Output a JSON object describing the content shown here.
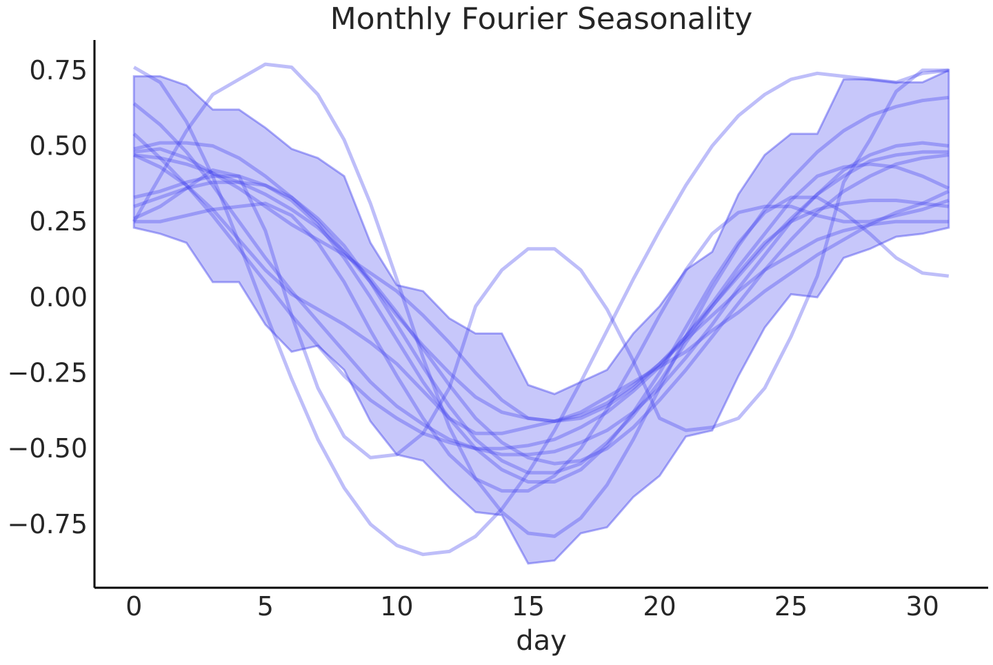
{
  "chart_data": {
    "type": "line",
    "title": "Monthly Fourier Seasonality",
    "xlabel": "day",
    "ylabel": "",
    "xlim": [
      -1.5,
      32.5
    ],
    "ylim": [
      -0.96,
      0.85
    ],
    "xticks": [
      0,
      5,
      10,
      15,
      20,
      25,
      30
    ],
    "xtick_labels": [
      "0",
      "5",
      "10",
      "15",
      "20",
      "25",
      "30"
    ],
    "yticks": [
      0.75,
      0.5,
      0.25,
      0.0,
      -0.25,
      -0.5,
      -0.75
    ],
    "ytick_labels": [
      "0.75",
      "0.50",
      "0.25",
      "0.00",
      "−0.25",
      "−0.50",
      "−0.75"
    ],
    "grid": false,
    "colors": {
      "line": "#4444ee",
      "band": "#4444ee",
      "axis": "#000000",
      "text": "#262626"
    },
    "x": [
      0,
      1,
      2,
      3,
      4,
      5,
      6,
      7,
      8,
      9,
      10,
      11,
      12,
      13,
      14,
      15,
      16,
      17,
      18,
      19,
      20,
      21,
      22,
      23,
      24,
      25,
      26,
      27,
      28,
      29,
      30,
      31
    ],
    "band": {
      "upper": [
        0.73,
        0.73,
        0.7,
        0.62,
        0.62,
        0.56,
        0.49,
        0.46,
        0.4,
        0.18,
        0.04,
        0.02,
        -0.07,
        -0.12,
        -0.12,
        -0.29,
        -0.32,
        -0.28,
        -0.24,
        -0.12,
        -0.03,
        0.09,
        0.15,
        0.34,
        0.47,
        0.54,
        0.54,
        0.72,
        0.72,
        0.71,
        0.71,
        0.75
      ],
      "lower": [
        0.23,
        0.21,
        0.18,
        0.05,
        0.05,
        -0.09,
        -0.18,
        -0.16,
        -0.24,
        -0.41,
        -0.52,
        -0.54,
        -0.63,
        -0.71,
        -0.72,
        -0.88,
        -0.87,
        -0.78,
        -0.76,
        -0.66,
        -0.59,
        -0.46,
        -0.44,
        -0.26,
        -0.1,
        0.01,
        0.0,
        0.13,
        0.16,
        0.2,
        0.21,
        0.23
      ]
    },
    "series": [
      {
        "values": [
          0.76,
          0.71,
          0.58,
          0.4,
          0.18,
          -0.05,
          -0.27,
          -0.47,
          -0.63,
          -0.75,
          -0.82,
          -0.85,
          -0.84,
          -0.79,
          -0.7,
          -0.58,
          -0.44,
          -0.28,
          -0.11,
          0.06,
          0.22,
          0.37,
          0.5,
          0.6,
          0.67,
          0.72,
          0.74,
          0.73,
          0.72,
          0.71,
          0.74,
          0.75
        ]
      },
      {
        "values": [
          0.25,
          0.4,
          0.55,
          0.67,
          0.72,
          0.77,
          0.76,
          0.67,
          0.52,
          0.31,
          0.06,
          -0.2,
          -0.43,
          -0.6,
          -0.71,
          -0.78,
          -0.79,
          -0.73,
          -0.62,
          -0.47,
          -0.3,
          -0.13,
          0.03,
          0.17,
          0.29,
          0.39,
          0.48,
          0.55,
          0.6,
          0.63,
          0.65,
          0.66
        ]
      },
      {
        "values": [
          0.26,
          0.3,
          0.36,
          0.42,
          0.4,
          0.22,
          -0.06,
          -0.3,
          -0.46,
          -0.53,
          -0.52,
          -0.45,
          -0.3,
          -0.03,
          0.09,
          0.16,
          0.16,
          0.09,
          -0.04,
          -0.21,
          -0.4,
          -0.44,
          -0.43,
          -0.4,
          -0.3,
          -0.13,
          0.07,
          0.38,
          0.52,
          0.68,
          0.75,
          0.75
        ]
      },
      {
        "values": [
          0.64,
          0.57,
          0.48,
          0.37,
          0.25,
          0.13,
          0.02,
          -0.08,
          -0.18,
          -0.28,
          -0.36,
          -0.42,
          -0.47,
          -0.5,
          -0.52,
          -0.52,
          -0.51,
          -0.48,
          -0.44,
          -0.38,
          -0.3,
          -0.2,
          -0.09,
          0.03,
          0.14,
          0.25,
          0.34,
          0.42,
          0.47,
          0.5,
          0.51,
          0.5
        ]
      },
      {
        "values": [
          0.54,
          0.46,
          0.37,
          0.27,
          0.16,
          0.05,
          -0.06,
          -0.16,
          -0.26,
          -0.34,
          -0.4,
          -0.45,
          -0.48,
          -0.5,
          -0.5,
          -0.49,
          -0.47,
          -0.43,
          -0.38,
          -0.31,
          -0.23,
          -0.13,
          -0.03,
          0.07,
          0.17,
          0.26,
          0.34,
          0.4,
          0.45,
          0.47,
          0.48,
          0.48
        ]
      },
      {
        "values": [
          0.33,
          0.35,
          0.38,
          0.4,
          0.4,
          0.37,
          0.32,
          0.24,
          0.13,
          0.0,
          -0.14,
          -0.28,
          -0.4,
          -0.5,
          -0.57,
          -0.61,
          -0.61,
          -0.57,
          -0.49,
          -0.38,
          -0.25,
          -0.1,
          0.05,
          0.18,
          0.28,
          0.33,
          0.33,
          0.28,
          0.21,
          0.13,
          0.08,
          0.07
        ]
      },
      {
        "values": [
          0.48,
          0.49,
          0.46,
          0.41,
          0.36,
          0.3,
          0.24,
          0.19,
          0.14,
          0.08,
          0.02,
          -0.06,
          -0.15,
          -0.25,
          -0.34,
          -0.4,
          -0.41,
          -0.4,
          -0.36,
          -0.3,
          -0.22,
          -0.13,
          -0.02,
          0.1,
          0.21,
          0.32,
          0.4,
          0.43,
          0.44,
          0.43,
          0.4,
          0.36
        ]
      },
      {
        "values": [
          0.3,
          0.33,
          0.36,
          0.38,
          0.38,
          0.37,
          0.33,
          0.26,
          0.17,
          0.05,
          -0.09,
          -0.23,
          -0.36,
          -0.47,
          -0.54,
          -0.58,
          -0.58,
          -0.55,
          -0.48,
          -0.39,
          -0.28,
          -0.15,
          -0.03,
          0.08,
          0.18,
          0.25,
          0.29,
          0.31,
          0.32,
          0.32,
          0.31,
          0.3
        ]
      },
      {
        "values": [
          0.47,
          0.46,
          0.44,
          0.41,
          0.38,
          0.34,
          0.29,
          0.23,
          0.15,
          0.06,
          -0.05,
          -0.17,
          -0.29,
          -0.4,
          -0.48,
          -0.53,
          -0.55,
          -0.54,
          -0.5,
          -0.43,
          -0.34,
          -0.24,
          -0.13,
          -0.02,
          0.09,
          0.19,
          0.28,
          0.35,
          0.4,
          0.44,
          0.46,
          0.47
        ]
      },
      {
        "values": [
          0.49,
          0.51,
          0.51,
          0.5,
          0.46,
          0.4,
          0.33,
          0.25,
          0.15,
          0.05,
          -0.06,
          -0.16,
          -0.25,
          -0.33,
          -0.38,
          -0.4,
          -0.41,
          -0.39,
          -0.35,
          -0.29,
          -0.22,
          -0.14,
          -0.06,
          0.02,
          0.09,
          0.14,
          0.19,
          0.22,
          0.24,
          0.25,
          0.25,
          0.25
        ]
      },
      {
        "values": [
          0.25,
          0.25,
          0.27,
          0.29,
          0.3,
          0.31,
          0.27,
          0.18,
          0.05,
          -0.11,
          -0.26,
          -0.4,
          -0.52,
          -0.6,
          -0.64,
          -0.64,
          -0.59,
          -0.5,
          -0.37,
          -0.22,
          -0.06,
          0.09,
          0.21,
          0.28,
          0.3,
          0.3,
          0.27,
          0.25,
          0.25,
          0.27,
          0.29,
          0.32
        ]
      },
      {
        "values": [
          0.47,
          0.43,
          0.37,
          0.29,
          0.19,
          0.09,
          0.01,
          -0.04,
          -0.09,
          -0.15,
          -0.22,
          -0.31,
          -0.4,
          -0.45,
          -0.45,
          -0.43,
          -0.41,
          -0.38,
          -0.33,
          -0.28,
          -0.23,
          -0.18,
          -0.11,
          -0.05,
          0.02,
          0.08,
          0.14,
          0.19,
          0.24,
          0.28,
          0.31,
          0.35
        ]
      }
    ]
  }
}
